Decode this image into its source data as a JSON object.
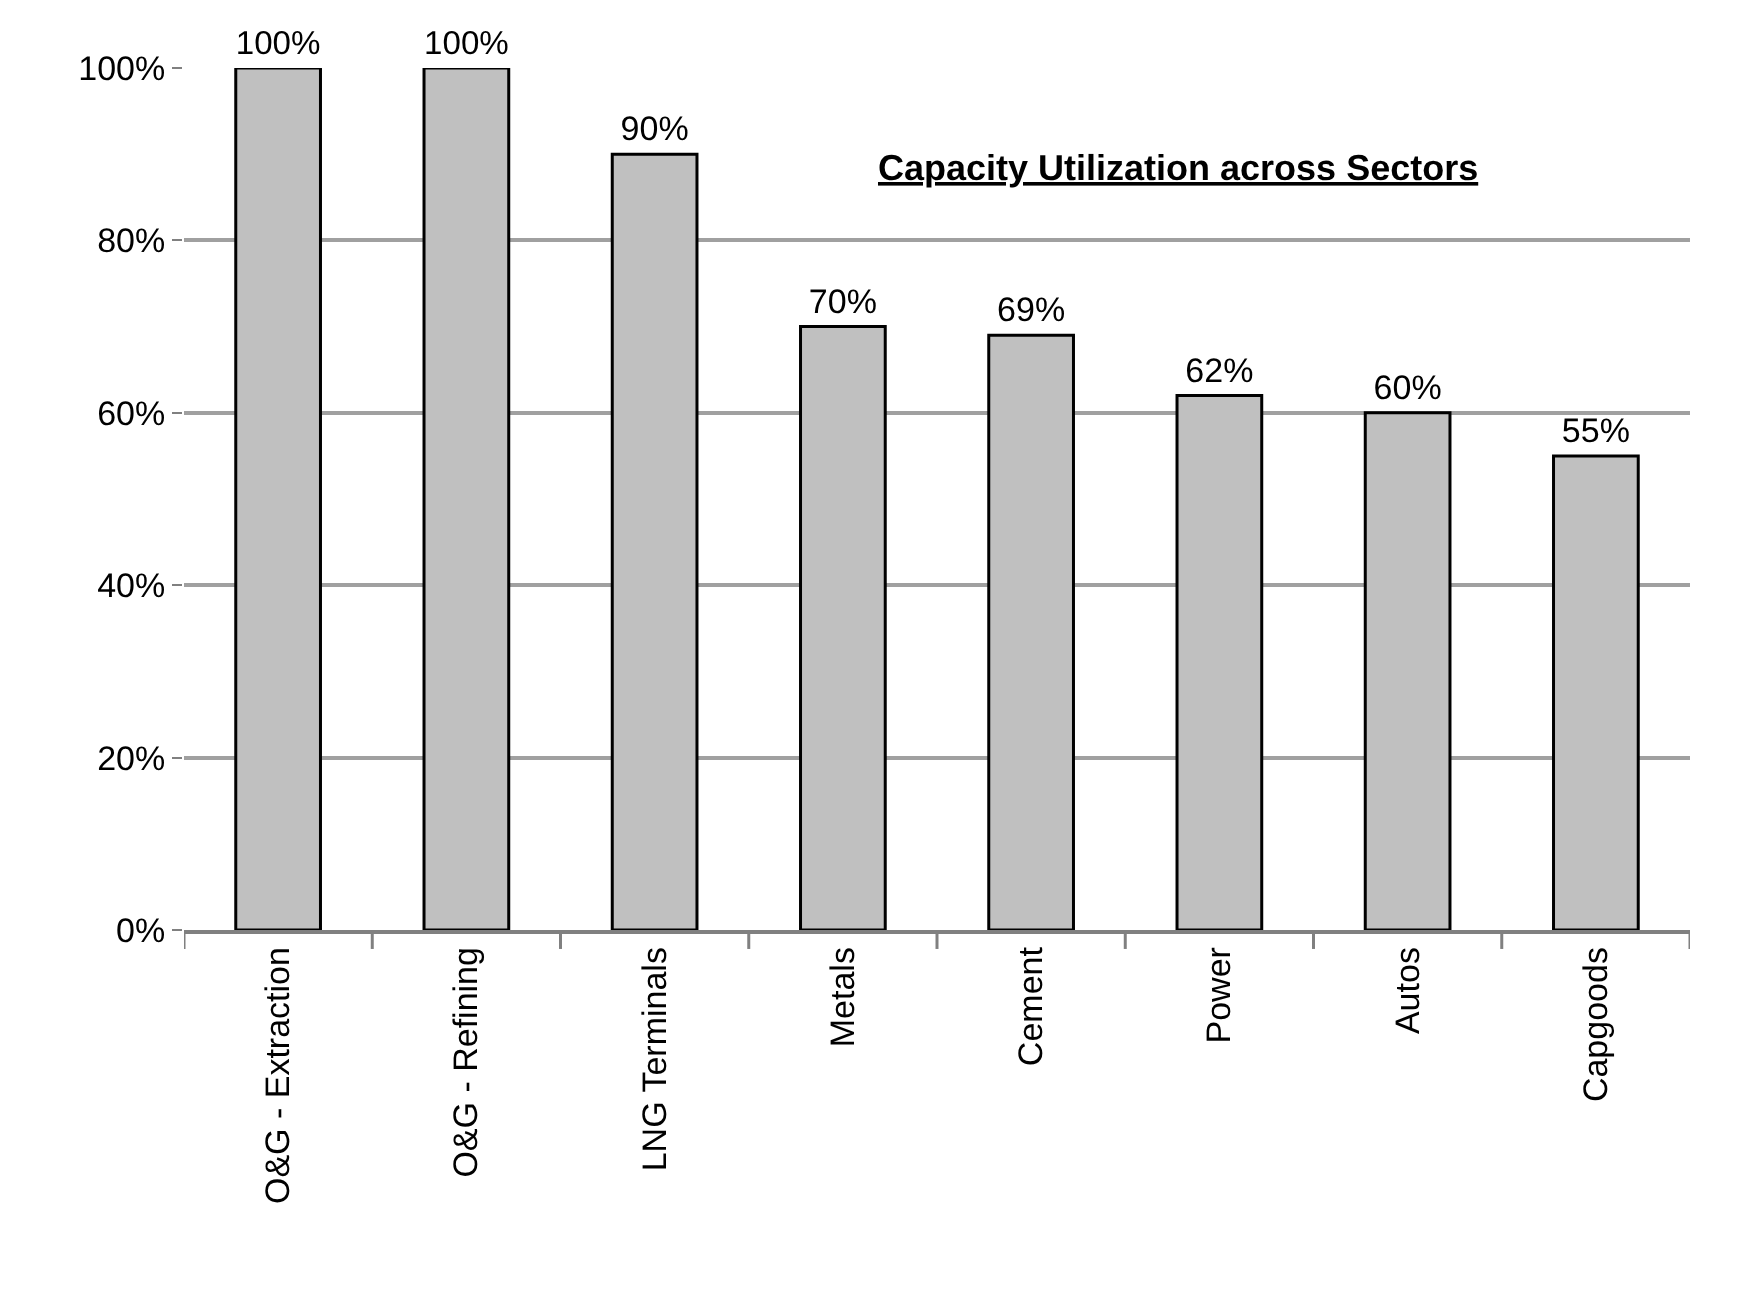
{
  "chart_data": {
    "type": "bar",
    "title": "Capacity Utilization across Sectors",
    "categories": [
      "O&G - Extraction",
      "O&G - Refining",
      "LNG Terminals",
      "Metals",
      "Cement",
      "Power",
      "Autos",
      "Capgoods"
    ],
    "values": [
      100,
      100,
      90,
      70,
      69,
      62,
      60,
      55
    ],
    "value_labels": [
      "100%",
      "100%",
      "90%",
      "70%",
      "69%",
      "62%",
      "60%",
      "55%"
    ],
    "color": "#c0c0c0",
    "ylim": [
      0,
      100
    ],
    "yticks": [
      {
        "value": 0,
        "label": "0%"
      },
      {
        "value": 20,
        "label": "20%"
      },
      {
        "value": 40,
        "label": "40%"
      },
      {
        "value": 60,
        "label": "60%"
      },
      {
        "value": 80,
        "label": "80%"
      },
      {
        "value": 100,
        "label": "100%"
      }
    ],
    "grid": "y"
  }
}
